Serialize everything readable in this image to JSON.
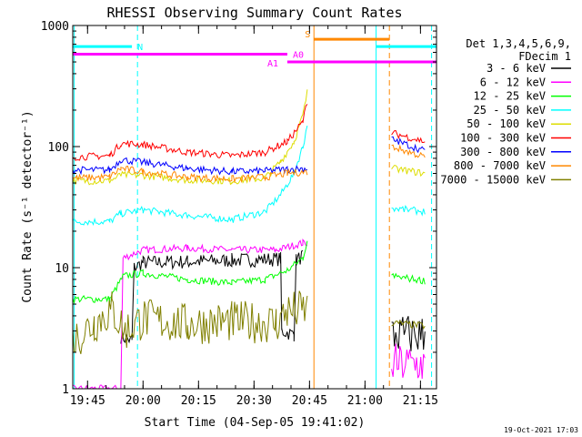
{
  "chart_data": {
    "type": "line",
    "title": "RHESSI Observing Summary Count Rates",
    "xlabel": "Start Time (04-Sep-05 19:41:02)",
    "ylabel": "Count Rate (s⁻¹ detector⁻¹)",
    "y_scale": "log",
    "xlim": [
      19.6833,
      21.3222
    ],
    "ylim": [
      1,
      1000
    ],
    "x_ticks": [
      {
        "value": 19.75,
        "label": "19:45"
      },
      {
        "value": 20.0,
        "label": "20:00"
      },
      {
        "value": 20.25,
        "label": "20:15"
      },
      {
        "value": 20.5,
        "label": "20:30"
      },
      {
        "value": 20.75,
        "label": "20:45"
      },
      {
        "value": 21.0,
        "label": "21:00"
      },
      {
        "value": 21.25,
        "label": "21:15"
      }
    ],
    "y_ticks": [
      {
        "value": 1,
        "label": "1"
      },
      {
        "value": 10,
        "label": "10"
      },
      {
        "value": 100,
        "label": "100"
      },
      {
        "value": 1000,
        "label": "1000"
      }
    ],
    "legend_header": [
      "Det 1,3,4,5,6,9,",
      "FDecim 1"
    ],
    "series": [
      {
        "name": "3 - 6 keV",
        "color": "#000000",
        "points": [
          [
            19.9,
            2.7
          ],
          [
            19.95,
            2.5
          ],
          [
            19.96,
            10
          ],
          [
            20.0,
            11
          ],
          [
            20.2,
            11.2
          ],
          [
            20.4,
            11.5
          ],
          [
            20.62,
            11.8
          ],
          [
            20.625,
            3.0
          ],
          [
            20.68,
            2.8
          ],
          [
            20.69,
            11.5
          ],
          [
            20.72,
            12.5
          ]
        ]
      },
      {
        "name": "6 - 12 keV",
        "color": "#ff00ff",
        "points": [
          [
            19.6833,
            1.0
          ],
          [
            19.9,
            1.0
          ],
          [
            19.91,
            12
          ],
          [
            20.0,
            14
          ],
          [
            20.2,
            14.5
          ],
          [
            20.4,
            14
          ],
          [
            20.6,
            14
          ],
          [
            20.72,
            16
          ],
          [
            20.74,
            16
          ]
        ]
      },
      {
        "name": "12 - 25 keV",
        "color": "#00ff00",
        "points": [
          [
            19.6833,
            5.5
          ],
          [
            19.85,
            5.5
          ],
          [
            19.91,
            8.5
          ],
          [
            20.0,
            9.0
          ],
          [
            20.2,
            8.0
          ],
          [
            20.4,
            7.5
          ],
          [
            20.55,
            8.0
          ],
          [
            20.65,
            9.5
          ],
          [
            20.72,
            12
          ],
          [
            20.74,
            17
          ]
        ]
      },
      {
        "name": "25 - 50 keV",
        "color": "#00ffff",
        "points": [
          [
            19.6833,
            24
          ],
          [
            19.85,
            24
          ],
          [
            19.9,
            28
          ],
          [
            20.0,
            30
          ],
          [
            20.2,
            27
          ],
          [
            20.4,
            25
          ],
          [
            20.55,
            29
          ],
          [
            20.62,
            40
          ],
          [
            20.68,
            60
          ],
          [
            20.72,
            100
          ],
          [
            20.74,
            150
          ]
        ]
      },
      {
        "name": "50 - 100 keV",
        "color": "#dddd00",
        "points": [
          [
            19.6833,
            52
          ],
          [
            19.85,
            52
          ],
          [
            19.9,
            58
          ],
          [
            20.0,
            58
          ],
          [
            20.2,
            53
          ],
          [
            20.4,
            52
          ],
          [
            20.55,
            55
          ],
          [
            20.62,
            75
          ],
          [
            20.68,
            110
          ],
          [
            20.72,
            180
          ],
          [
            20.74,
            280
          ]
        ]
      },
      {
        "name": "100 - 300 keV",
        "color": "#ff0000",
        "points": [
          [
            19.6833,
            82
          ],
          [
            19.85,
            84
          ],
          [
            19.9,
            106
          ],
          [
            20.0,
            104
          ],
          [
            20.2,
            90
          ],
          [
            20.4,
            84
          ],
          [
            20.55,
            90
          ],
          [
            20.65,
            110
          ],
          [
            20.72,
            160
          ],
          [
            20.74,
            240
          ]
        ]
      },
      {
        "name": "300 - 800 keV",
        "color": "#0000ff",
        "points": [
          [
            19.6833,
            64
          ],
          [
            19.85,
            64
          ],
          [
            19.9,
            78
          ],
          [
            20.0,
            74
          ],
          [
            20.2,
            66
          ],
          [
            20.4,
            62
          ],
          [
            20.55,
            63
          ],
          [
            20.65,
            65
          ],
          [
            20.74,
            66
          ]
        ]
      },
      {
        "name": "800 - 7000 keV",
        "color": "#ff8800",
        "points": [
          [
            19.6833,
            55
          ],
          [
            19.85,
            56
          ],
          [
            19.9,
            66
          ],
          [
            20.0,
            62
          ],
          [
            20.2,
            56
          ],
          [
            20.4,
            54
          ],
          [
            20.55,
            56
          ],
          [
            20.65,
            60
          ],
          [
            20.74,
            62
          ]
        ]
      },
      {
        "name": "7000 - 15000 keV",
        "color": "#808000",
        "points": [
          [
            19.6833,
            2.5
          ],
          [
            19.78,
            3.5
          ],
          [
            19.86,
            4.5
          ],
          [
            19.92,
            3.0
          ],
          [
            20.0,
            3.8
          ],
          [
            20.2,
            3.4
          ],
          [
            20.4,
            3.6
          ],
          [
            20.6,
            3.5
          ],
          [
            20.65,
            4.3
          ],
          [
            20.74,
            4.5
          ]
        ]
      }
    ],
    "post_gap_series": [
      {
        "name": "6 - 12 keV",
        "color": "#ff00ff",
        "points": [
          [
            21.12,
            1.6
          ],
          [
            21.27,
            1.6
          ]
        ]
      },
      {
        "name": "3 - 6 keV",
        "color": "#000000",
        "points": [
          [
            21.12,
            2.8
          ],
          [
            21.27,
            2.8
          ]
        ]
      },
      {
        "name": "7000 - 15000 keV",
        "color": "#808000",
        "points": [
          [
            21.12,
            3.5
          ],
          [
            21.27,
            3.3
          ]
        ]
      },
      {
        "name": "12 - 25 keV",
        "color": "#00ff00",
        "points": [
          [
            21.12,
            8.5
          ],
          [
            21.27,
            7.8
          ]
        ]
      },
      {
        "name": "25 - 50 keV",
        "color": "#00ffff",
        "points": [
          [
            21.12,
            31
          ],
          [
            21.27,
            29
          ]
        ]
      },
      {
        "name": "50 - 100 keV",
        "color": "#dddd00",
        "points": [
          [
            21.12,
            66
          ],
          [
            21.27,
            60
          ]
        ]
      },
      {
        "name": "800 - 7000 keV",
        "color": "#ff8800",
        "points": [
          [
            21.12,
            100
          ],
          [
            21.27,
            82
          ]
        ]
      },
      {
        "name": "300 - 800 keV",
        "color": "#0000ff",
        "points": [
          [
            21.12,
            115
          ],
          [
            21.27,
            92
          ]
        ]
      },
      {
        "name": "100 - 300 keV",
        "color": "#ff0000",
        "points": [
          [
            21.12,
            130
          ],
          [
            21.27,
            110
          ]
        ]
      }
    ],
    "markers": {
      "bars": [
        {
          "label": "N",
          "color": "#00ffff",
          "level": 670,
          "segments": [
            [
              19.6833,
              19.95
            ],
            [
              21.05,
              21.3222
            ]
          ]
        },
        {
          "label": "S",
          "color": "#ff8800",
          "level": 770,
          "segments": [
            [
              20.77,
              21.11
            ]
          ]
        },
        {
          "label": "A0",
          "color": "#ff00ff",
          "level": 580,
          "segments": [
            [
              19.6833,
              20.65
            ]
          ]
        },
        {
          "label": "A1",
          "color": "#ff00ff",
          "level": 500,
          "segments": [
            [
              20.65,
              21.3222
            ]
          ]
        }
      ],
      "vlines": [
        {
          "x": 19.69,
          "color": "#00ffff",
          "style": "solid"
        },
        {
          "x": 19.975,
          "color": "#00ffff",
          "style": "dashed"
        },
        {
          "x": 20.77,
          "color": "#ff8800",
          "style": "solid"
        },
        {
          "x": 21.11,
          "color": "#ff8800",
          "style": "dashed"
        },
        {
          "x": 21.05,
          "color": "#00ffff",
          "style": "solid"
        },
        {
          "x": 21.3,
          "color": "#00ffff",
          "style": "dashed"
        }
      ]
    },
    "timestamp": "19-Oct-2021 17:03",
    "background": "#ffffff",
    "axis_color": "#000000"
  }
}
